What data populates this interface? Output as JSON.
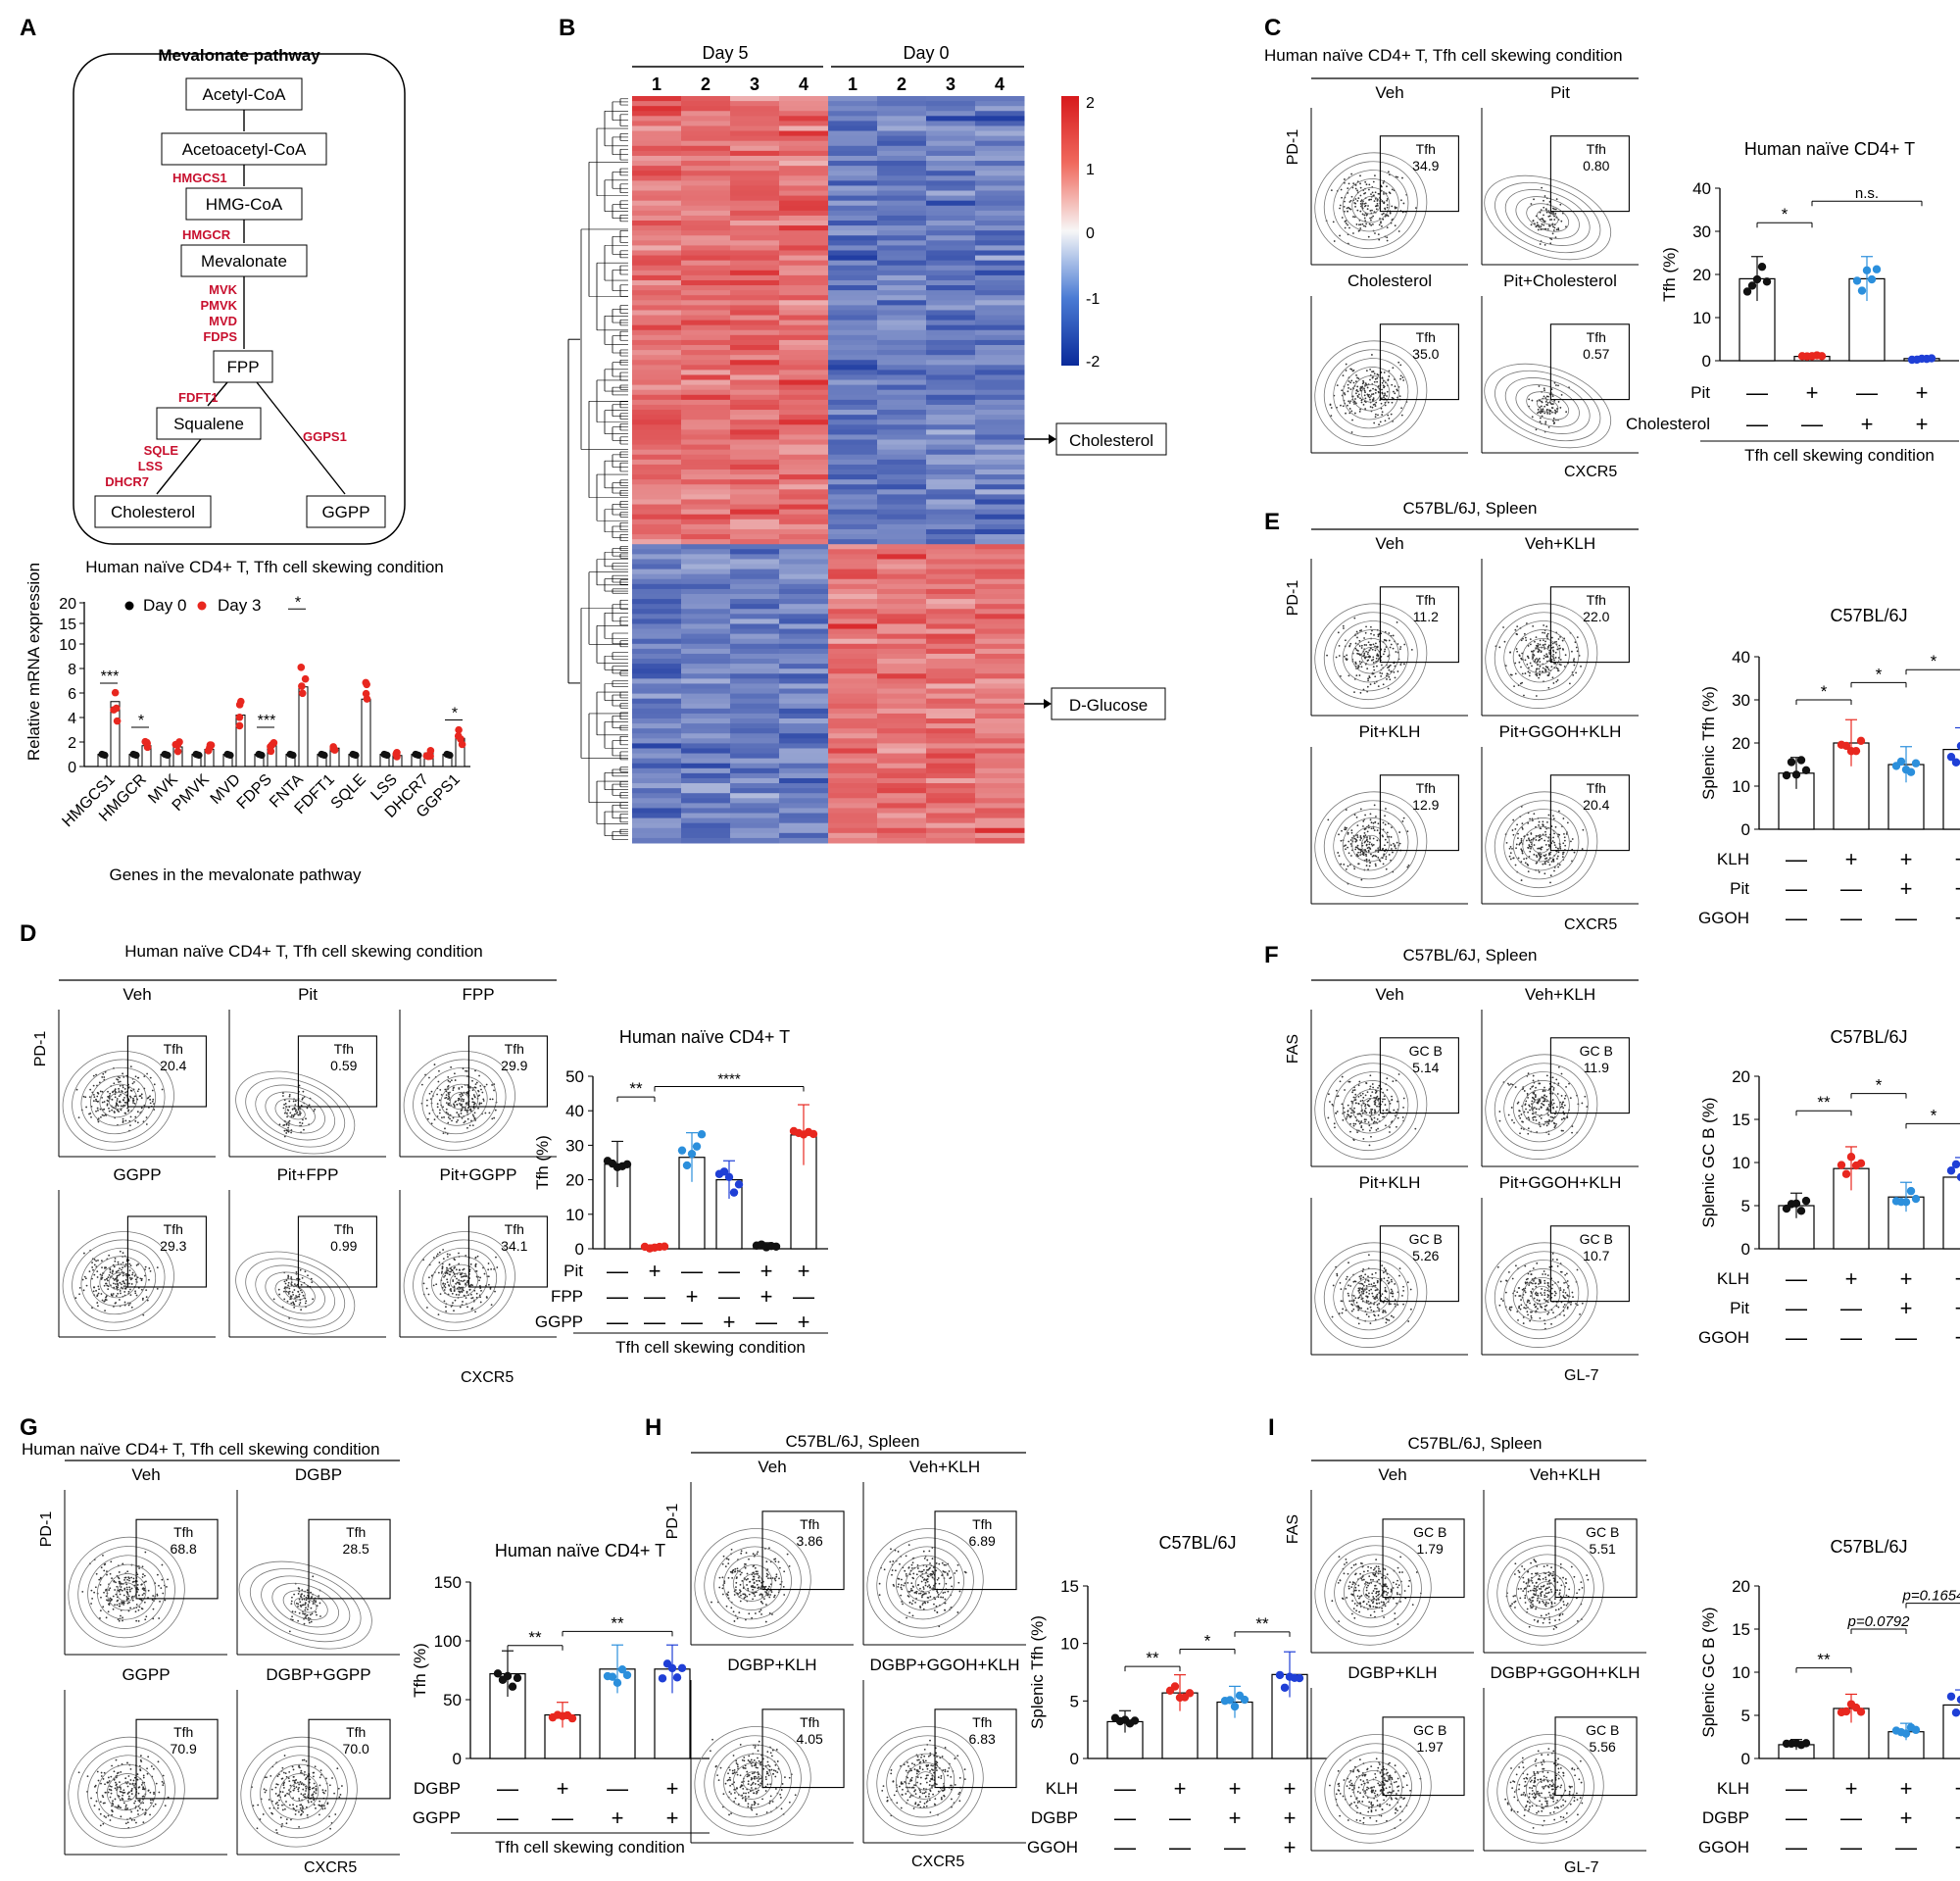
{
  "panels": {
    "A": {
      "letter": "A",
      "pathway_title": "Mevalonate pathway",
      "nodes": [
        "Acetyl-CoA",
        "Acetoacetyl-CoA",
        "HMG-CoA",
        "Mevalonate",
        "FPP",
        "Squalene",
        "Cholesterol",
        "GGPP"
      ],
      "enzymes": {
        "hmgcs1": "HMGCS1",
        "hmgcr": "HMGCR",
        "mvk": "MVK",
        "pmvk": "PMVK",
        "mvd": "MVD",
        "fdps": "FDPS",
        "fdft1": "FDFT1",
        "ggps1": "GGPS1",
        "sqle": "SQLE",
        "lss": "LSS",
        "dhcr7": "DHCR7"
      },
      "chart_title": "Human naïve CD4+ T, Tfh cell skewing condition",
      "legend": [
        "Day 0",
        "Day 3"
      ],
      "ylabel": "Relative mRNA expression",
      "xlabel": "Genes in the mevalonate pathway",
      "sig": [
        "***",
        "*",
        "***",
        "*",
        "*"
      ]
    },
    "B": {
      "letter": "B",
      "groups": [
        "Day 5",
        "Day 0"
      ],
      "columns": [
        "1",
        "2",
        "3",
        "4",
        "1",
        "2",
        "3",
        "4"
      ],
      "scale_ticks": [
        "2",
        "1",
        "0",
        "-1",
        "-2"
      ],
      "callouts": [
        "Cholesterol",
        "D-Glucose"
      ]
    },
    "C": {
      "letter": "C",
      "title": "Human naïve CD4+ T, Tfh cell skewing condition",
      "plots": [
        {
          "cond": "Veh",
          "gate": "Tfh",
          "value": "34.9"
        },
        {
          "cond": "Pit",
          "gate": "Tfh",
          "value": "0.80"
        },
        {
          "cond": "Cholesterol",
          "gate": "Tfh",
          "value": "35.0"
        },
        {
          "cond": "Pit+Cholesterol",
          "gate": "Tfh",
          "value": "0.57"
        }
      ],
      "ylab": "PD-1",
      "xlab": "CXCR5",
      "bar_title": "Human naïve CD4+ T",
      "bar_ylabel": "Tfh (%)",
      "rows": [
        "Pit",
        "Cholesterol"
      ],
      "footer": "Tfh cell skewing condition",
      "sig": [
        "*",
        "n.s."
      ]
    },
    "D": {
      "letter": "D",
      "title": "Human naïve CD4+ T, Tfh cell skewing condition",
      "plots": [
        {
          "cond": "Veh",
          "gate": "Tfh",
          "value": "20.4"
        },
        {
          "cond": "Pit",
          "gate": "Tfh",
          "value": "0.59"
        },
        {
          "cond": "FPP",
          "gate": "Tfh",
          "value": "29.9"
        },
        {
          "cond": "GGPP",
          "gate": "Tfh",
          "value": "29.3"
        },
        {
          "cond": "Pit+FPP",
          "gate": "Tfh",
          "value": "0.99"
        },
        {
          "cond": "Pit+GGPP",
          "gate": "Tfh",
          "value": "34.1"
        }
      ],
      "ylab": "PD-1",
      "xlab": "CXCR5",
      "bar_title": "Human naïve CD4+ T",
      "bar_ylabel": "Tfh (%)",
      "rows": [
        "Pit",
        "FPP",
        "GGPP"
      ],
      "footer": "Tfh cell skewing condition",
      "sig": [
        "**",
        "****"
      ]
    },
    "E": {
      "letter": "E",
      "title": "C57BL/6J, Spleen",
      "plots": [
        {
          "cond": "Veh",
          "gate": "Tfh",
          "value": "11.2"
        },
        {
          "cond": "Veh+KLH",
          "gate": "Tfh",
          "value": "22.0"
        },
        {
          "cond": "Pit+KLH",
          "gate": "Tfh",
          "value": "12.9"
        },
        {
          "cond": "Pit+GGOH+KLH",
          "gate": "Tfh",
          "value": "20.4"
        }
      ],
      "ylab": "PD-1",
      "xlab": "CXCR5",
      "bar_title": "C57BL/6J",
      "bar_ylabel": "Splenic Tfh (%)",
      "rows": [
        "KLH",
        "Pit",
        "GGOH"
      ],
      "sig": [
        "*",
        "*",
        "*"
      ]
    },
    "F": {
      "letter": "F",
      "title": "C57BL/6J, Spleen",
      "plots": [
        {
          "cond": "Veh",
          "gate": "GC B",
          "value": "5.14"
        },
        {
          "cond": "Veh+KLH",
          "gate": "GC B",
          "value": "11.9"
        },
        {
          "cond": "Pit+KLH",
          "gate": "GC B",
          "value": "5.26"
        },
        {
          "cond": "Pit+GGOH+KLH",
          "gate": "GC B",
          "value": "10.7"
        }
      ],
      "ylab": "FAS",
      "xlab": "GL-7",
      "bar_title": "C57BL/6J",
      "bar_ylabel": "Splenic GC B (%)",
      "rows": [
        "KLH",
        "Pit",
        "GGOH"
      ],
      "sig": [
        "**",
        "*",
        "*"
      ]
    },
    "G": {
      "letter": "G",
      "title": "Human naïve CD4+ T, Tfh cell skewing condition",
      "plots": [
        {
          "cond": "Veh",
          "gate": "Tfh",
          "value": "68.8"
        },
        {
          "cond": "DGBP",
          "gate": "Tfh",
          "value": "28.5"
        },
        {
          "cond": "GGPP",
          "gate": "Tfh",
          "value": "70.9"
        },
        {
          "cond": "DGBP+GGPP",
          "gate": "Tfh",
          "value": "70.0"
        }
      ],
      "ylab": "PD-1",
      "xlab": "CXCR5",
      "bar_title": "Human naïve CD4+ T",
      "bar_ylabel": "Tfh (%)",
      "rows": [
        "DGBP",
        "GGPP"
      ],
      "footer": "Tfh cell skewing condition",
      "sig": [
        "**",
        "**"
      ]
    },
    "H": {
      "letter": "H",
      "title": "C57BL/6J, Spleen",
      "plots": [
        {
          "cond": "Veh",
          "gate": "Tfh",
          "value": "3.86"
        },
        {
          "cond": "Veh+KLH",
          "gate": "Tfh",
          "value": "6.89"
        },
        {
          "cond": "DGBP+KLH",
          "gate": "Tfh",
          "value": "4.05"
        },
        {
          "cond": "DGBP+GGOH+KLH",
          "gate": "Tfh",
          "value": "6.83"
        }
      ],
      "ylab": "PD-1",
      "xlab": "CXCR5",
      "bar_title": "C57BL/6J",
      "bar_ylabel": "Splenic Tfh (%)",
      "rows": [
        "KLH",
        "DGBP",
        "GGOH"
      ],
      "sig": [
        "**",
        "*",
        "**"
      ]
    },
    "I": {
      "letter": "I",
      "title": "C57BL/6J, Spleen",
      "plots": [
        {
          "cond": "Veh",
          "gate": "GC B",
          "value": "1.79"
        },
        {
          "cond": "Veh+KLH",
          "gate": "GC B",
          "value": "5.51"
        },
        {
          "cond": "DGBP+KLH",
          "gate": "GC B",
          "value": "1.97"
        },
        {
          "cond": "DGBP+GGOH+KLH",
          "gate": "GC B",
          "value": "5.56"
        }
      ],
      "ylab": "FAS",
      "xlab": "GL-7",
      "bar_title": "C57BL/6J",
      "bar_ylabel": "Splenic GC B (%)",
      "rows": [
        "KLH",
        "DGBP",
        "GGOH"
      ],
      "sig": [
        "**",
        "p=0.0792",
        "p=0.1654"
      ]
    }
  },
  "chart_data": [
    {
      "id": "A",
      "type": "bar",
      "categories": [
        "HMGCS1",
        "HMGCR",
        "MVK",
        "PMVK",
        "MVD",
        "FDPS",
        "FNTA",
        "FDFT1",
        "SQLE",
        "LSS",
        "DHCR7",
        "GGPS1"
      ],
      "series": [
        {
          "name": "Day 0",
          "values": [
            1,
            1,
            1,
            1,
            1,
            1,
            1,
            1,
            1,
            1,
            1,
            1
          ]
        },
        {
          "name": "Day 3",
          "values": [
            5.3,
            1.7,
            1.6,
            1.4,
            4.2,
            1.7,
            6.5,
            1.5,
            5.5,
            0.9,
            1.1,
            2.3
          ]
        }
      ],
      "ylim": [
        0,
        20
      ],
      "yticks": [
        "0",
        "2",
        "4",
        "6",
        "8",
        "10",
        "15",
        "20"
      ]
    },
    {
      "id": "C",
      "type": "bar",
      "values": [
        19,
        1,
        19,
        0.5
      ],
      "ylim": [
        0,
        40
      ],
      "yticks": [
        "0",
        "10",
        "20",
        "30",
        "40"
      ],
      "condition_rows": [
        [
          "—",
          "+",
          "—",
          "+"
        ],
        [
          "—",
          "—",
          "+",
          "+"
        ]
      ]
    },
    {
      "id": "D",
      "type": "bar",
      "values": [
        24.5,
        0.5,
        26.5,
        20,
        1,
        33
      ],
      "ylim": [
        0,
        50
      ],
      "yticks": [
        "0",
        "10",
        "20",
        "30",
        "40",
        "50"
      ],
      "condition_rows": [
        [
          "—",
          "+",
          "—",
          "—",
          "+",
          "+"
        ],
        [
          "—",
          "—",
          "+",
          "—",
          "+",
          "—"
        ],
        [
          "—",
          "—",
          "—",
          "+",
          "—",
          "+"
        ]
      ]
    },
    {
      "id": "E",
      "type": "bar",
      "values": [
        13,
        20,
        15,
        18.5
      ],
      "ylim": [
        0,
        40
      ],
      "yticks": [
        "0",
        "10",
        "20",
        "30",
        "40"
      ],
      "condition_rows": [
        [
          "—",
          "+",
          "+",
          "+"
        ],
        [
          "—",
          "—",
          "+",
          "+"
        ],
        [
          "—",
          "—",
          "—",
          "+"
        ]
      ]
    },
    {
      "id": "F",
      "type": "bar",
      "values": [
        5,
        9.3,
        6,
        8.3
      ],
      "ylim": [
        0,
        20
      ],
      "yticks": [
        "0",
        "5",
        "10",
        "15",
        "20"
      ],
      "condition_rows": [
        [
          "—",
          "+",
          "+",
          "+"
        ],
        [
          "—",
          "—",
          "+",
          "+"
        ],
        [
          "—",
          "—",
          "—",
          "+"
        ]
      ]
    },
    {
      "id": "G",
      "type": "bar",
      "values": [
        72,
        37,
        76,
        76
      ],
      "ylim": [
        0,
        150
      ],
      "yticks": [
        "0",
        "50",
        "100",
        "150"
      ],
      "condition_rows": [
        [
          "—",
          "+",
          "—",
          "+"
        ],
        [
          "—",
          "—",
          "+",
          "+"
        ]
      ]
    },
    {
      "id": "H",
      "type": "bar",
      "values": [
        3.2,
        5.7,
        4.9,
        7.3
      ],
      "ylim": [
        0,
        15
      ],
      "yticks": [
        "0",
        "5",
        "10",
        "15"
      ],
      "condition_rows": [
        [
          "—",
          "+",
          "+",
          "+"
        ],
        [
          "—",
          "—",
          "+",
          "+"
        ],
        [
          "—",
          "—",
          "—",
          "+"
        ]
      ]
    },
    {
      "id": "I",
      "type": "bar",
      "values": [
        1.6,
        5.8,
        3.1,
        6.2
      ],
      "ylim": [
        0,
        20
      ],
      "yticks": [
        "0",
        "5",
        "10",
        "15",
        "20"
      ],
      "condition_rows": [
        [
          "—",
          "+",
          "+",
          "+"
        ],
        [
          "—",
          "—",
          "+",
          "+"
        ],
        [
          "—",
          "—",
          "—",
          "+"
        ]
      ]
    }
  ]
}
